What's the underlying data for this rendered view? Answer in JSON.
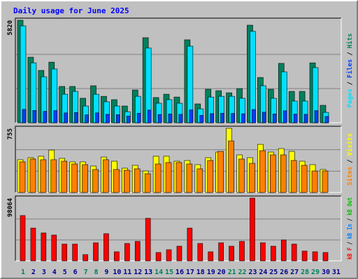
{
  "chart_data": {
    "type": "bar",
    "title": "Daily usage for June 2025",
    "categories": [
      "1",
      "2",
      "3",
      "4",
      "5",
      "6",
      "7",
      "8",
      "9",
      "10",
      "11",
      "12",
      "13",
      "14",
      "15",
      "16",
      "17",
      "18",
      "19",
      "20",
      "21",
      "22",
      "23",
      "24",
      "25",
      "26",
      "27",
      "28",
      "29",
      "30",
      "31"
    ],
    "category_colors": [
      "#00805c",
      "#00008b",
      "#00008b",
      "#00008b",
      "#00008b",
      "#00008b",
      "#00805c",
      "#00805c",
      "#00008b",
      "#00008b",
      "#00008b",
      "#00008b",
      "#00008b",
      "#00805c",
      "#00805c",
      "#00008b",
      "#00008b",
      "#00008b",
      "#00008b",
      "#00008b",
      "#00805c",
      "#00805c",
      "#00008b",
      "#00008b",
      "#00008b",
      "#00008b",
      "#00008b",
      "#00805c",
      "#00805c",
      "#00008b",
      "#00008b"
    ],
    "grid": true,
    "panels": [
      {
        "ylim": [
          0,
          5820
        ],
        "yticks": [
          5820
        ],
        "legend_separator": "/",
        "series": [
          {
            "name": "Pages",
            "color": "#00e0ff",
            "values": [
              5500,
              3400,
              2610,
              3050,
              1620,
              1780,
              950,
              1620,
              1190,
              950,
              630,
              1500,
              4240,
              1110,
              1310,
              1110,
              4350,
              790,
              1460,
              1500,
              1500,
              1390,
              5190,
              2100,
              1390,
              2890,
              1230,
              1230,
              3130,
              590,
              null
            ]
          },
          {
            "name": "Files",
            "color": "#0040ff",
            "values": [
              760,
              700,
              650,
              690,
              560,
              580,
              450,
              560,
              480,
              460,
              380,
              540,
              720,
              470,
              500,
              480,
              730,
              420,
              520,
              540,
              530,
              510,
              750,
              600,
              500,
              680,
              490,
              480,
              690,
              360,
              null
            ]
          },
          {
            "name": "Hits",
            "color": "#00805c",
            "values": [
              5820,
              3720,
              2970,
              3440,
              2060,
              2060,
              1390,
              2100,
              1500,
              1310,
              950,
              1860,
              4830,
              1430,
              1620,
              1460,
              4710,
              1070,
              1900,
              1820,
              1700,
              1940,
              5540,
              2570,
              1900,
              3370,
              1780,
              1780,
              3400,
              990,
              null
            ]
          }
        ]
      },
      {
        "ylim": [
          0,
          755
        ],
        "yticks": [
          755
        ],
        "legend_separator": "/",
        "series": [
          {
            "name": "Sites",
            "color": "#ff8000",
            "values": [
              361,
              394,
              386,
              386,
              369,
              336,
              328,
              271,
              386,
              271,
              262,
              279,
              221,
              336,
              353,
              353,
              336,
              279,
              377,
              484,
              607,
              394,
              344,
              492,
              443,
              443,
              377,
              320,
              254,
              254,
              null
            ]
          },
          {
            "name": "Visits",
            "color": "#ffff00",
            "values": [
              386,
              410,
              427,
              500,
              402,
              361,
              361,
              312,
              418,
              369,
              287,
              320,
              254,
              427,
              427,
              369,
              377,
              328,
              410,
              476,
              755,
              443,
              410,
              566,
              476,
              517,
              484,
              369,
              328,
              271,
              null
            ]
          }
        ]
      },
      {
        "ylim": [
          0,
          98064
        ],
        "yticks": [
          98064
        ],
        "legend_separator": "/",
        "series": [
          {
            "name": "kB F",
            "color": "#ff0000",
            "values": [
              70800,
              51200,
              43600,
              40300,
              26200,
              26200,
              9800,
              28300,
              42500,
              14200,
              27200,
              30500,
              66500,
              13100,
              17400,
              22900,
              51200,
              27200,
              14200,
              28300,
              22900,
              30500,
              98064,
              28300,
              22900,
              32700,
              26200,
              15300,
              14200,
              13100,
              null
            ]
          },
          {
            "name": "kB In",
            "color": "#0080ff"
          },
          {
            "name": "kB Out",
            "color": "#00c000"
          }
        ]
      }
    ]
  }
}
